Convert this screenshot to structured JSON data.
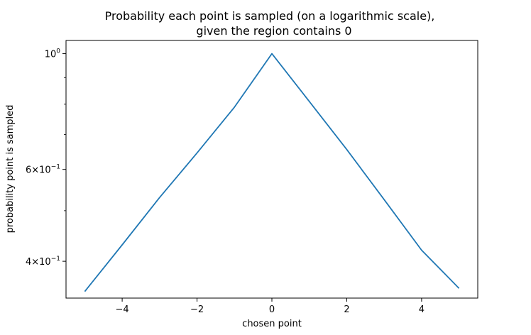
{
  "chart_data": {
    "type": "line",
    "title": [
      "Probability each point is sampled (on a logarithmic scale),",
      "given the region contains 0"
    ],
    "xlabel": "chosen point",
    "ylabel": "probability point is sampled",
    "yscale": "log",
    "xlim": [
      -5.5,
      5.5
    ],
    "ylim": [
      0.34,
      1.06
    ],
    "grid": false,
    "x_ticks": [
      {
        "value": -4,
        "label": "−4"
      },
      {
        "value": -2,
        "label": "−2"
      },
      {
        "value": 0,
        "label": "0"
      },
      {
        "value": 2,
        "label": "2"
      },
      {
        "value": 4,
        "label": "4"
      }
    ],
    "y_major_ticks": [
      {
        "value": 1.0,
        "base": "10",
        "exp": "0"
      },
      {
        "value": 0.6,
        "base": "6×10",
        "exp": "−1"
      },
      {
        "value": 0.4,
        "base": "4×10",
        "exp": "−1"
      }
    ],
    "y_minor_ticks": [
      0.5,
      0.7,
      0.8,
      0.9
    ],
    "series": [
      {
        "color": "#1f77b4",
        "x": [
          -5,
          -4,
          -3,
          -2,
          -1,
          0,
          1,
          2,
          3,
          4,
          5
        ],
        "y": [
          0.35,
          0.43,
          0.53,
          0.645,
          0.79,
          1.0,
          0.81,
          0.655,
          0.525,
          0.42,
          0.355
        ]
      }
    ]
  }
}
